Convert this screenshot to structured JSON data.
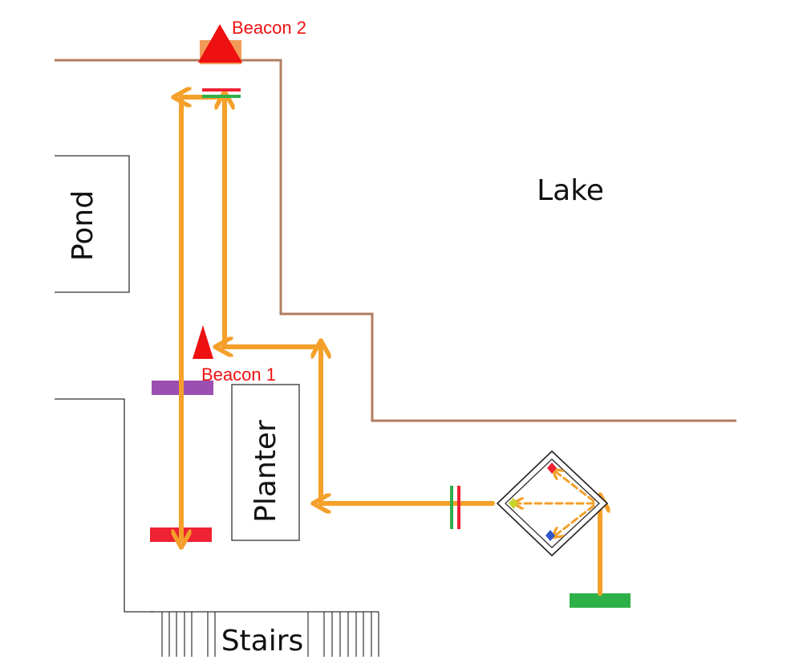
{
  "areas": {
    "lake": "Lake",
    "pond": "Pond",
    "planter": "Planter",
    "stairs": "Stairs"
  },
  "beacons": {
    "beacon_1": "Beacon 1",
    "beacon_2": "Beacon 2"
  },
  "colors": {
    "shoreline": "#b07d62",
    "route": "#f4a02a",
    "beacon": "#ee1111",
    "marker_green": "#2eb049",
    "marker_red": "#ee2233",
    "marker_purple": "#9b4fb0",
    "marker_orange": "#f08a3c",
    "wall": "#333333"
  }
}
